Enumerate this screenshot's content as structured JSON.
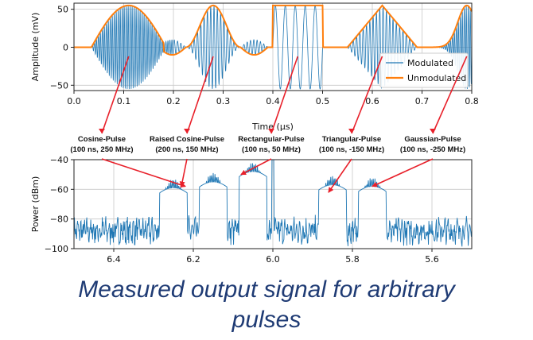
{
  "colors": {
    "modulated": "#1f77b4",
    "unmodulated": "#ff7f0e",
    "arrow": "#e8202a",
    "caption": "#1f3b74",
    "grid": "#c8c8c8"
  },
  "caption": {
    "line1": "Measured output signal for arbitrary",
    "line2": "pulses"
  },
  "annotations": [
    {
      "name": "Cosine-Pulse",
      "params": "(100 ns, 250 MHz)",
      "time_us": 0.11,
      "freq_ghz": 6.15
    },
    {
      "name": "Raised Cosine-Pulse",
      "params": "(200 ns, 150 MHz)",
      "time_us": 0.28,
      "freq_ghz": 6.25
    },
    {
      "name": "Rectangular-Pulse",
      "params": "(100 ns, 50 MHz)",
      "time_us": 0.45,
      "freq_ghz": 6.05
    },
    {
      "name": "Triangular-Pulse",
      "params": "(100 ns, -150 MHz)",
      "time_us": 0.62,
      "freq_ghz": 5.85
    },
    {
      "name": "Gaussian-Pulse",
      "params": "(100 ns, -250 MHz)",
      "time_us": 0.79,
      "freq_ghz": 5.75
    }
  ],
  "chart_data": [
    {
      "type": "line",
      "xlabel": "Time (μs)",
      "ylabel": "Amplitude (mV)",
      "xlim": [
        0.0,
        0.8
      ],
      "ylim": [
        -57,
        58
      ],
      "xticks": [
        "0.0",
        "0.1",
        "0.2",
        "0.3",
        "0.4",
        "0.5",
        "0.6",
        "0.7",
        "0.8"
      ],
      "yticks": [
        "50",
        "0",
        "−50"
      ],
      "grid": true,
      "legend_position": "lower-right",
      "series": [
        {
          "name": "Modulated",
          "description": "carrier-modulated pulses"
        },
        {
          "name": "Unmodulated",
          "description": "pulse envelopes"
        }
      ],
      "pulses": [
        {
          "shape": "cosine",
          "center_us": 0.11,
          "duration_us": 0.1,
          "peak_mV": 55
        },
        {
          "shape": "raised-cosine",
          "center_us": 0.28,
          "duration_us": 0.2,
          "peak_mV": 55
        },
        {
          "shape": "rectangular",
          "start_us": 0.4,
          "end_us": 0.5,
          "peak_mV": 55
        },
        {
          "shape": "triangular",
          "center_us": 0.62,
          "duration_us": 0.1,
          "peak_mV": 55
        },
        {
          "shape": "gaussian",
          "center_us": 0.79,
          "duration_us": 0.1,
          "peak_mV": 55
        }
      ]
    },
    {
      "type": "line",
      "xlabel": "",
      "ylabel": "Power (dBm)",
      "xlim": [
        6.5,
        5.5
      ],
      "ylim": [
        -100,
        -40
      ],
      "xticks": [
        "6.4",
        "6.2",
        "6.0",
        "5.8",
        "5.6"
      ],
      "yticks": [
        "−40",
        "−60",
        "−80",
        "−100"
      ],
      "grid": true,
      "noise_floor_dBm": -88,
      "peaks": [
        {
          "freq_ghz": 6.15,
          "power_dBm": -55
        },
        {
          "freq_ghz": 6.25,
          "power_dBm": -59
        },
        {
          "freq_ghz": 6.05,
          "power_dBm": -48
        },
        {
          "freq_ghz": 6.0,
          "power_dBm": -40
        },
        {
          "freq_ghz": 5.85,
          "power_dBm": -57
        },
        {
          "freq_ghz": 5.75,
          "power_dBm": -58
        }
      ]
    }
  ]
}
